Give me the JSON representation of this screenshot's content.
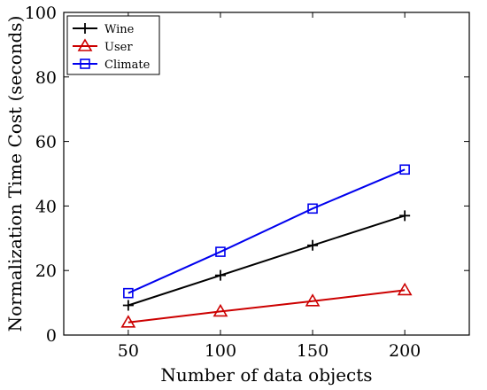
{
  "chart_data": {
    "type": "line",
    "title": "",
    "xlabel": "Number of data objects",
    "ylabel": "Normalization Time Cost (seconds)",
    "x": [
      50,
      100,
      150,
      200
    ],
    "xticks": [
      "50",
      "100",
      "150",
      "200"
    ],
    "xlim": [
      15,
      235
    ],
    "ylim": [
      0,
      100
    ],
    "yticks": [
      "0",
      "20",
      "40",
      "60",
      "80",
      "100"
    ],
    "grid": false,
    "legend_position": "top-left",
    "series": [
      {
        "name": "Wine",
        "values": [
          9.2,
          18.5,
          27.8,
          37.0
        ],
        "color": "#000000",
        "marker": "plus"
      },
      {
        "name": "User",
        "values": [
          3.9,
          7.3,
          10.5,
          13.9
        ],
        "color": "#cc0000",
        "marker": "triangle"
      },
      {
        "name": "Climate",
        "values": [
          13.0,
          25.8,
          39.2,
          51.3
        ],
        "color": "#0000ee",
        "marker": "square"
      }
    ]
  }
}
